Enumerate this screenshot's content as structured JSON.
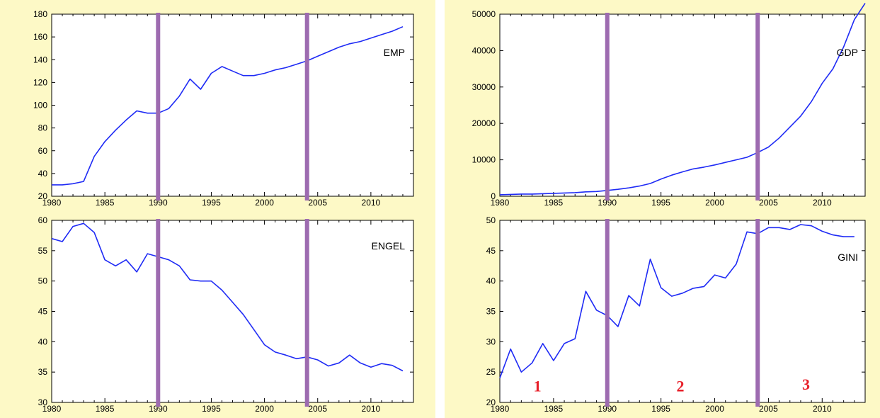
{
  "colors": {
    "background": "#fdf9c6",
    "series": "#1f2bf5",
    "regime_line": "#9d6bb0",
    "regime_label": "#e8202a"
  },
  "chart_data": [
    {
      "type": "line",
      "series_label": "EMP",
      "x": [
        1980,
        1981,
        1982,
        1983,
        1984,
        1985,
        1986,
        1987,
        1988,
        1989,
        1990,
        1991,
        1992,
        1993,
        1994,
        1995,
        1996,
        1997,
        1998,
        1999,
        2000,
        2001,
        2002,
        2003,
        2004,
        2005,
        2006,
        2007,
        2008,
        2009,
        2010,
        2011,
        2012,
        2013
      ],
      "values": [
        30,
        30,
        31,
        33,
        55,
        68,
        78,
        87,
        95,
        93,
        93,
        97,
        108,
        123,
        114,
        128,
        134,
        130,
        126,
        126,
        128,
        131,
        133,
        136,
        139,
        143,
        147,
        151,
        154,
        156,
        159,
        162,
        165,
        169
      ],
      "xlim": [
        1980,
        2014
      ],
      "ylim": [
        20,
        180
      ],
      "x_ticks": [
        1980,
        1985,
        1990,
        1995,
        2000,
        2005,
        2010
      ],
      "y_ticks": [
        20,
        40,
        60,
        80,
        100,
        120,
        140,
        160,
        180
      ],
      "regime_breaks": [
        1990,
        2004
      ]
    },
    {
      "type": "line",
      "series_label": "GDP",
      "x": [
        1980,
        1981,
        1982,
        1983,
        1984,
        1985,
        1986,
        1987,
        1988,
        1989,
        1990,
        1991,
        1992,
        1993,
        1994,
        1995,
        1996,
        1997,
        1998,
        1999,
        2000,
        2001,
        2002,
        2003,
        2004,
        2005,
        2006,
        2007,
        2008,
        2009,
        2010,
        2011,
        2012,
        2013,
        2014
      ],
      "values": [
        400,
        500,
        600,
        600,
        700,
        800,
        900,
        1000,
        1200,
        1300,
        1600,
        1900,
        2300,
        2800,
        3500,
        4700,
        5800,
        6700,
        7500,
        8000,
        8600,
        9300,
        10000,
        10700,
        12000,
        13500,
        16000,
        19000,
        22000,
        26000,
        31000,
        35000,
        41000,
        48500,
        53000
      ],
      "xlim": [
        1980,
        2014
      ],
      "ylim": [
        0,
        50000
      ],
      "x_ticks": [
        1980,
        1985,
        1990,
        1995,
        2000,
        2005,
        2010
      ],
      "y_ticks": [
        0,
        10000,
        20000,
        30000,
        40000,
        50000
      ],
      "regime_breaks": [
        1990,
        2004
      ]
    },
    {
      "type": "line",
      "series_label": "ENGEL",
      "x": [
        1980,
        1981,
        1982,
        1983,
        1984,
        1985,
        1986,
        1987,
        1988,
        1989,
        1990,
        1991,
        1992,
        1993,
        1994,
        1995,
        1996,
        1997,
        1998,
        1999,
        2000,
        2001,
        2002,
        2003,
        2004,
        2005,
        2006,
        2007,
        2008,
        2009,
        2010,
        2011,
        2012,
        2013
      ],
      "values": [
        57,
        56.5,
        59,
        59.5,
        58,
        53.5,
        52.5,
        53.5,
        51.5,
        54.5,
        54,
        53.5,
        52.5,
        50.2,
        50,
        50,
        48.5,
        46.5,
        44.5,
        42,
        39.5,
        38.3,
        37.8,
        37.2,
        37.5,
        37,
        36,
        36.5,
        37.8,
        36.5,
        35.8,
        36.4,
        36.1,
        35.2
      ],
      "xlim": [
        1980,
        2014
      ],
      "ylim": [
        30,
        60
      ],
      "x_ticks": [
        1980,
        1985,
        1990,
        1995,
        2000,
        2005,
        2010
      ],
      "y_ticks": [
        30,
        35,
        40,
        45,
        50,
        55,
        60
      ],
      "regime_breaks": [
        1990,
        2004
      ]
    },
    {
      "type": "line",
      "series_label": "GINI",
      "x": [
        1980,
        1981,
        1982,
        1983,
        1984,
        1985,
        1986,
        1987,
        1988,
        1989,
        1990,
        1991,
        1992,
        1993,
        1994,
        1995,
        1996,
        1997,
        1998,
        1999,
        2000,
        2001,
        2002,
        2003,
        2004,
        2005,
        2006,
        2007,
        2008,
        2009,
        2010,
        2011,
        2012,
        2013
      ],
      "values": [
        24,
        28.8,
        25,
        26.5,
        29.7,
        26.9,
        29.7,
        30.5,
        38.3,
        35.2,
        34.3,
        32.5,
        37.6,
        35.9,
        43.6,
        38.9,
        37.5,
        38,
        38.8,
        39.1,
        41,
        40.5,
        42.8,
        48.1,
        47.8,
        48.8,
        48.8,
        48.5,
        49.3,
        49.1,
        48.2,
        47.6,
        47.3,
        47.3
      ],
      "xlim": [
        1980,
        2014
      ],
      "ylim": [
        20,
        50
      ],
      "x_ticks": [
        1980,
        1985,
        1990,
        1995,
        2000,
        2005,
        2010
      ],
      "y_ticks": [
        20,
        25,
        30,
        35,
        40,
        45,
        50
      ],
      "regime_breaks": [
        1990,
        2004
      ],
      "regime_labels": [
        {
          "text": "1",
          "x": 1983.5,
          "y": 22.5
        },
        {
          "text": "2",
          "x": 1996.8,
          "y": 22.5
        },
        {
          "text": "3",
          "x": 2008.5,
          "y": 22.8
        }
      ]
    }
  ]
}
